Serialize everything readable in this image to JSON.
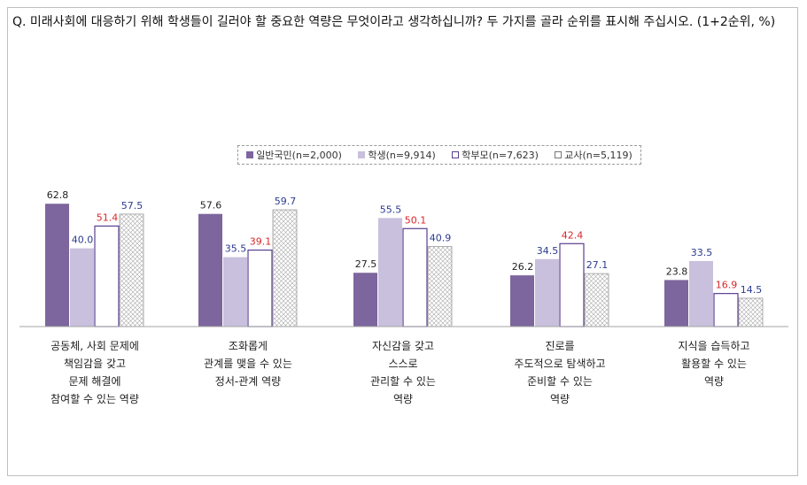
{
  "question": "Q. 미래사회에 대응하기 위해 학생들이 길러야 할 중요한 역량은 무엇이라고 생각하십니까? 두 가지를 골라 순위를 표시해 주십시오. (1+2순위, %)",
  "colors": {
    "series_fill": [
      "#7d659d",
      "#c8c0dc",
      "#ffffff",
      "#ffffff"
    ],
    "series_stroke": [
      "#7d659d",
      "#c8c0dc",
      "#5a3f8f",
      "#9a9a9a"
    ],
    "label_colors": [
      "#222222",
      "#2a3b8f",
      "#d9262a",
      "#2a3b8f"
    ],
    "axis": "#a6a6a6"
  },
  "legend": [
    {
      "marker": "■",
      "text": "일반국민(n=2,000)"
    },
    {
      "marker": "■",
      "text": "학생(n=9,914)"
    },
    {
      "marker": "□",
      "text": "학부모(n=7,623)"
    },
    {
      "marker": "□",
      "text": "교사(n=5,119)"
    }
  ],
  "chart_data": {
    "type": "bar",
    "unit": "%",
    "categories": [
      "공동체, 사회 문제에\n책임감을 갖고\n문제 해결에\n참여할 수 있는 역량",
      "조화롭게\n관계를 맺을 수 있는\n정서-관계 역량",
      "자신감을 갖고\n스스로\n관리할 수 있는\n역량",
      "진로를\n주도적으로 탐색하고\n준비할 수 있는\n역량",
      "지식을 습득하고\n활용할 수 있는\n역량"
    ],
    "series": [
      {
        "name": "일반국민(n=2,000)",
        "values": [
          62.8,
          57.6,
          27.5,
          26.2,
          23.8
        ]
      },
      {
        "name": "학생(n=9,914)",
        "values": [
          40.0,
          35.5,
          55.5,
          34.5,
          33.5
        ]
      },
      {
        "name": "학부모(n=7,623)",
        "values": [
          51.4,
          39.1,
          50.1,
          42.4,
          16.9
        ]
      },
      {
        "name": "교사(n=5,119)",
        "values": [
          57.5,
          59.7,
          40.9,
          27.1,
          14.5
        ]
      }
    ],
    "value_labels": [
      [
        "62.8",
        "57.6",
        "27.5",
        "26.2",
        "23.8"
      ],
      [
        "40.0",
        "35.5",
        "55.5",
        "34.5",
        "33.5"
      ],
      [
        "51.4",
        "39.1",
        "50.1",
        "42.4",
        "16.9"
      ],
      [
        "57.5",
        "59.7",
        "40.9",
        "27.1",
        "14.5"
      ]
    ],
    "ylim": [
      0,
      70
    ],
    "grid": false,
    "legend_position": "top-center"
  }
}
